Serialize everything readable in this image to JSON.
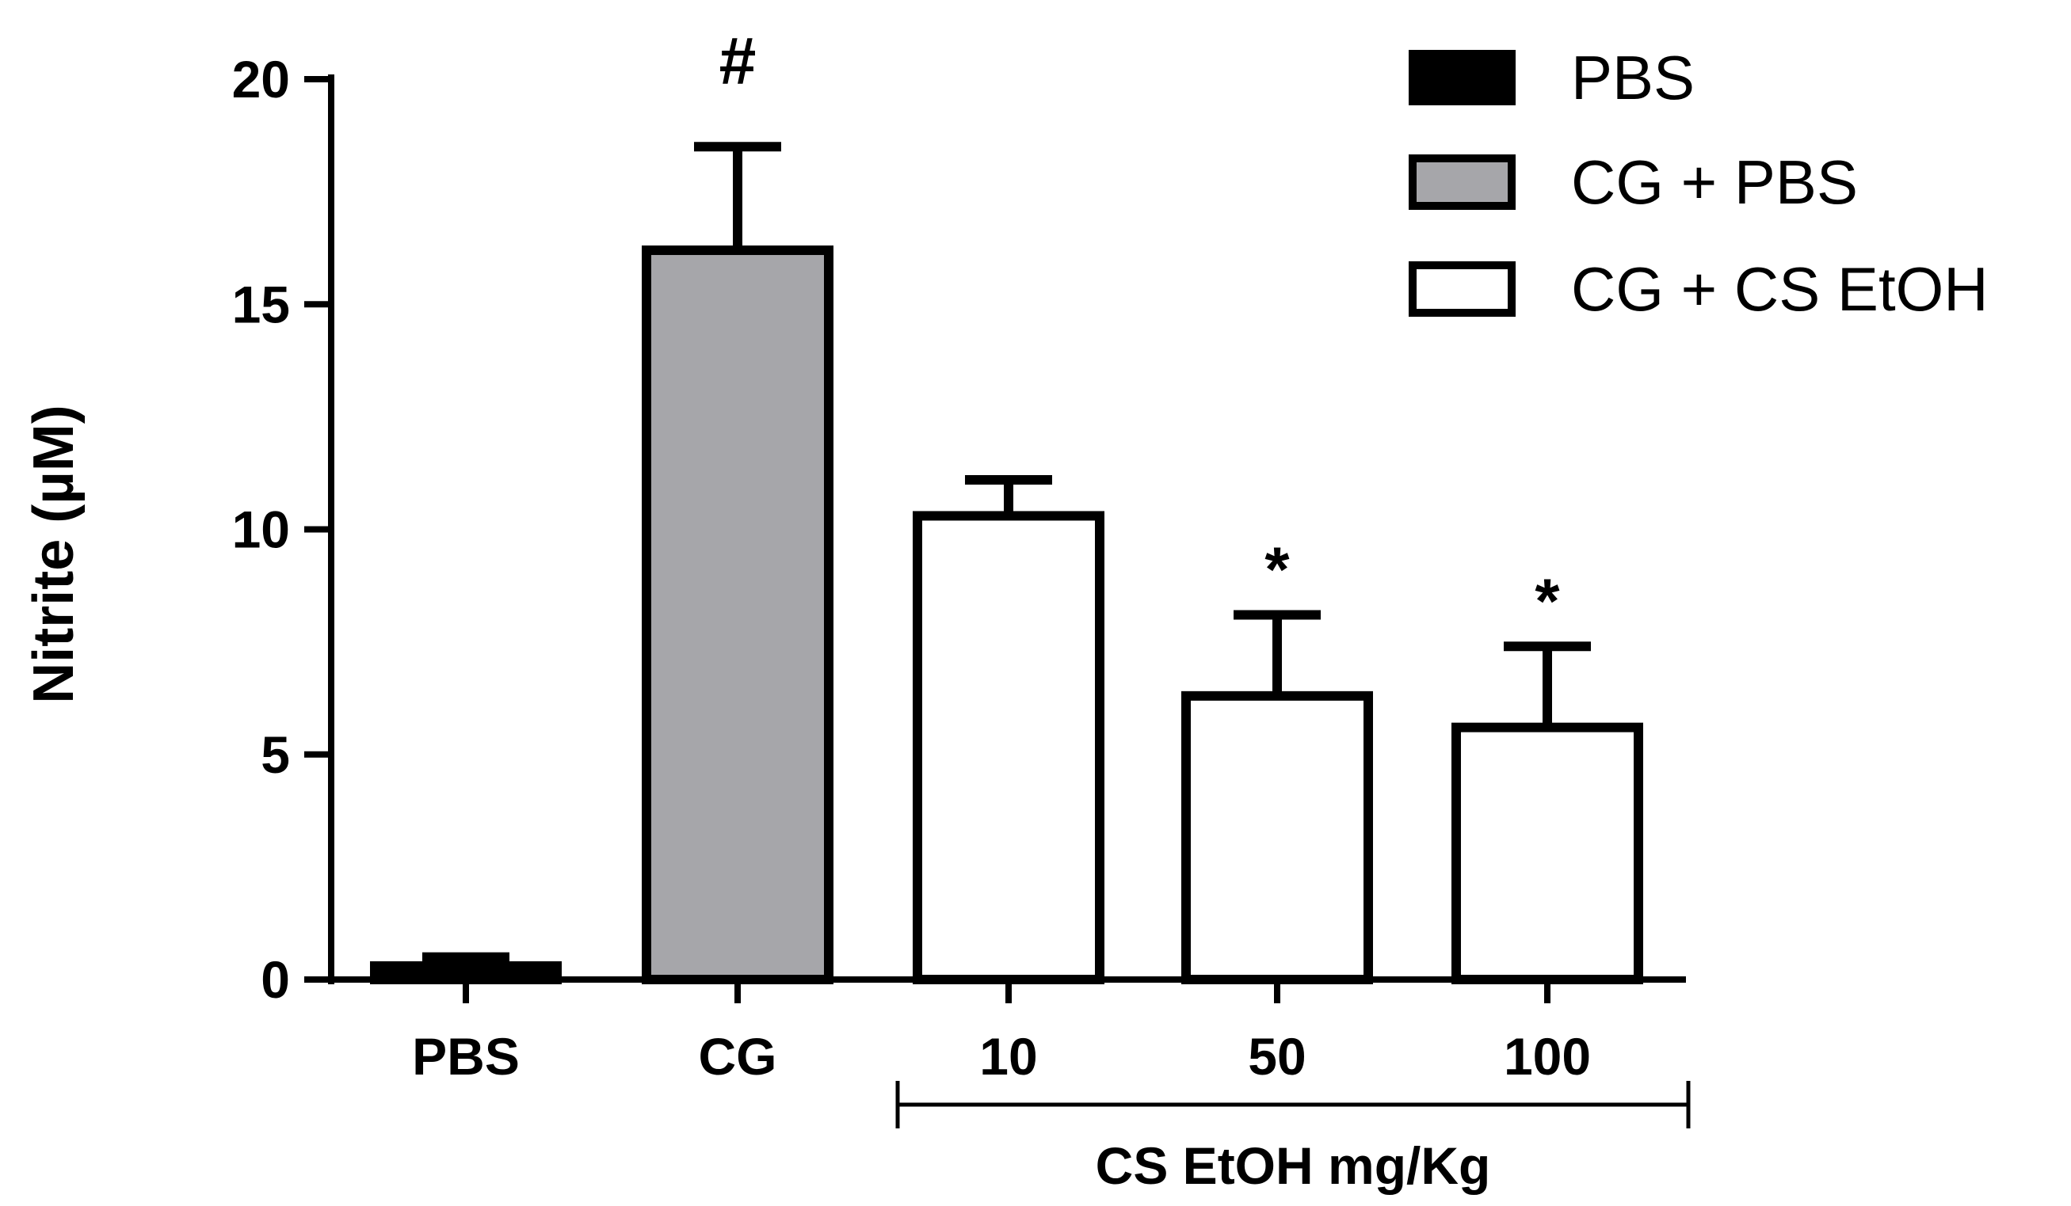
{
  "chart_data": {
    "type": "bar",
    "ylabel": "Nitrite (µM)",
    "xlabel": "",
    "ylim": [
      0,
      20
    ],
    "yticks": [
      0,
      5,
      10,
      15,
      20
    ],
    "grid": false,
    "legend_position": "top-right",
    "categories": [
      "PBS",
      "CG",
      "10",
      "50",
      "100"
    ],
    "group_label": "CS EtOH mg/Kg",
    "values": [
      0.3,
      16.2,
      10.3,
      6.3,
      5.6
    ],
    "errors": [
      0.2,
      2.3,
      0.8,
      1.8,
      1.8
    ],
    "annotations": [
      "",
      "#",
      "",
      "*",
      "*"
    ],
    "bar_series": [
      "PBS",
      "CG + PBS",
      "CG + CS EtOH",
      "CG + CS EtOH",
      "CG + CS EtOH"
    ],
    "legend": [
      {
        "label": "PBS",
        "color": "#000000"
      },
      {
        "label": "CG + PBS",
        "color": "#a6a6aa"
      },
      {
        "label": "CG + CS EtOH",
        "color": "#ffffff"
      }
    ]
  }
}
